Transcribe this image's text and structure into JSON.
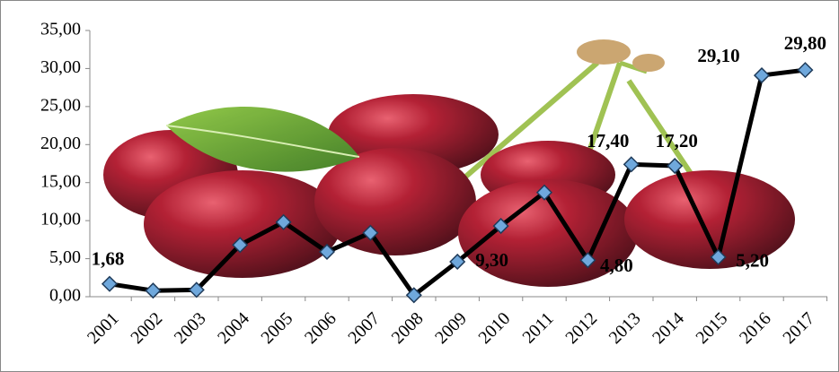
{
  "chart_data": {
    "type": "line",
    "x": [
      "2001",
      "2002",
      "2003",
      "2004",
      "2005",
      "2006",
      "2007",
      "2008",
      "2009",
      "2010",
      "2011",
      "2012",
      "2013",
      "2014",
      "2015",
      "2016",
      "2017"
    ],
    "values": [
      1.68,
      0.8,
      0.9,
      6.8,
      9.8,
      5.9,
      8.4,
      0.2,
      4.6,
      9.3,
      13.7,
      4.8,
      17.4,
      17.2,
      5.2,
      29.1,
      29.8
    ],
    "value_labels": [
      "1,68",
      null,
      null,
      null,
      null,
      null,
      null,
      null,
      null,
      "9,30",
      null,
      "4,80",
      "17,40",
      "17,20",
      "5,20",
      "29,10",
      "29,80"
    ],
    "color": "#000000",
    "marker_color": "#6fa8dc",
    "ylim": [
      0,
      35
    ],
    "yticks": [
      {
        "value": 0,
        "label": "0,00"
      },
      {
        "value": 5,
        "label": "5,00"
      },
      {
        "value": 10,
        "label": "10,00"
      },
      {
        "value": 15,
        "label": "15,00"
      },
      {
        "value": 20,
        "label": "20,00"
      },
      {
        "value": 25,
        "label": "25,00"
      },
      {
        "value": 30,
        "label": "30,00"
      },
      {
        "value": 35,
        "label": "35,00"
      }
    ]
  }
}
